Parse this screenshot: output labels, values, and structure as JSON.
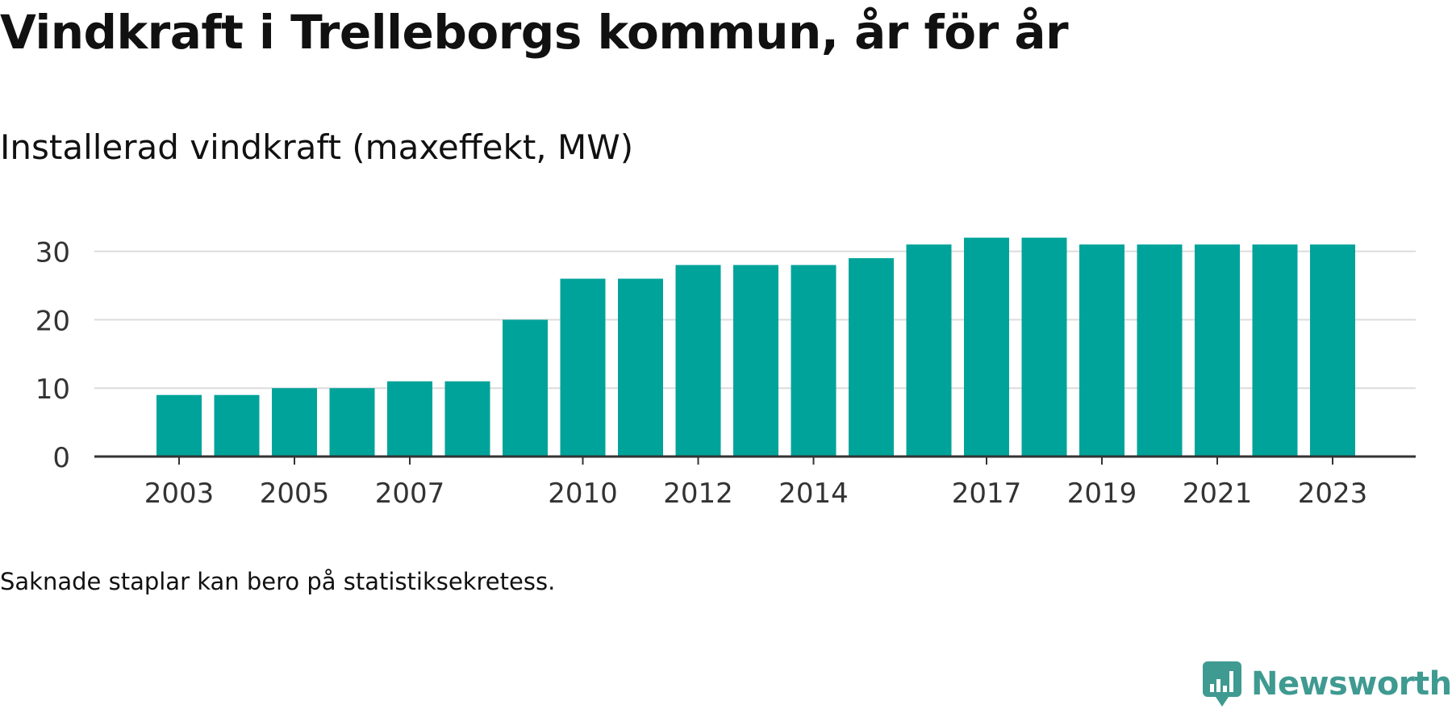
{
  "header": {
    "title": "Vindkraft i Trelleborgs kommun, år för år",
    "subtitle": "Installerad vindkraft (maxeffekt, MW)"
  },
  "footer": {
    "note": "Saknade staplar kan bero på statistiksekretess.",
    "brand": "Newsworthy",
    "brand_icon": "bar-chart-speech-bubble-icon"
  },
  "colors": {
    "bar": "#00a39a",
    "grid": "#dcdcdc",
    "axis": "#333333",
    "brand": "#3f9a91"
  },
  "chart_data": {
    "type": "bar",
    "categories": [
      "2003",
      "2004",
      "2005",
      "2006",
      "2007",
      "2008",
      "2009",
      "2010",
      "2011",
      "2012",
      "2013",
      "2014",
      "2015",
      "2016",
      "2017",
      "2018",
      "2019",
      "2020",
      "2021",
      "2022",
      "2023"
    ],
    "values": [
      9,
      9,
      10,
      10,
      11,
      11,
      20,
      26,
      26,
      28,
      28,
      28,
      29,
      31,
      32,
      32,
      31,
      31,
      31,
      31,
      31
    ],
    "x_tick_labels": [
      "2003",
      "2005",
      "2007",
      "2010",
      "2012",
      "2014",
      "2017",
      "2019",
      "2021",
      "2023"
    ],
    "y_ticks": [
      0,
      10,
      20,
      30
    ],
    "ylim": [
      0,
      32
    ],
    "grid": true,
    "xlabel": "",
    "ylabel": ""
  }
}
